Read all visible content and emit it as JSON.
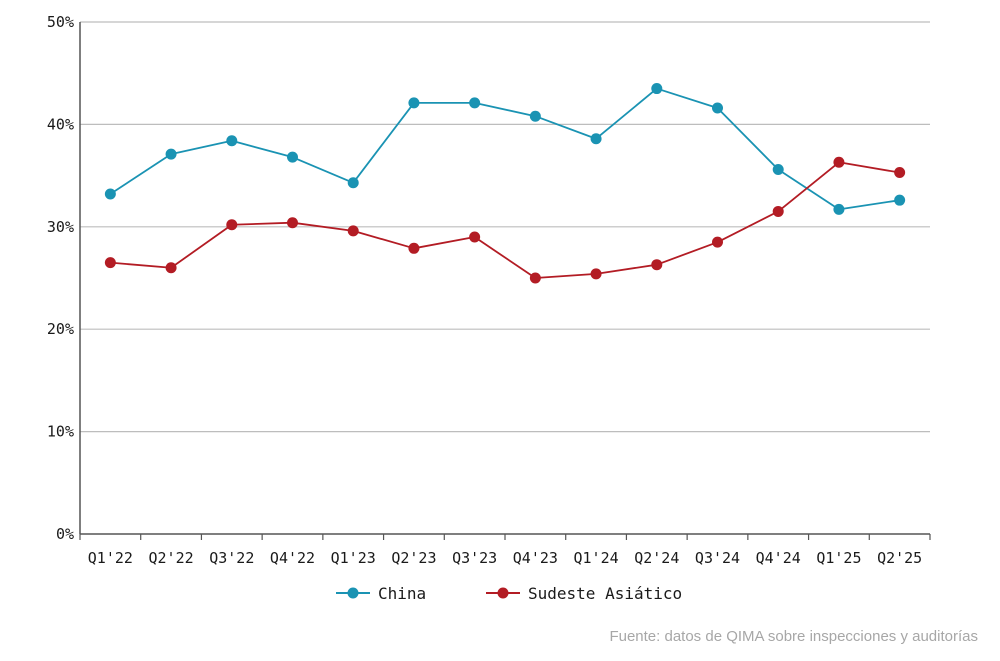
{
  "chart_data": {
    "type": "line",
    "title": "",
    "xlabel": "",
    "ylabel": "",
    "categories": [
      "Q1'22",
      "Q2'22",
      "Q3'22",
      "Q4'22",
      "Q1'23",
      "Q2'23",
      "Q3'23",
      "Q4'23",
      "Q1'24",
      "Q2'24",
      "Q3'24",
      "Q4'24",
      "Q1'25",
      "Q2'25"
    ],
    "y_ticks": [
      "0%",
      "10%",
      "20%",
      "30%",
      "40%",
      "50%"
    ],
    "ylim": [
      0,
      50
    ],
    "y_unit": "%",
    "grid": "horizontal",
    "legend_position": "bottom-center",
    "series": [
      {
        "name": "China",
        "color": "#1a93b3",
        "values": [
          33.2,
          37.1,
          38.4,
          36.8,
          34.3,
          42.1,
          42.1,
          40.8,
          38.6,
          43.5,
          41.6,
          35.6,
          31.7,
          32.6
        ]
      },
      {
        "name": "Sudeste Asiático",
        "color": "#b31c24",
        "values": [
          26.5,
          26.0,
          30.2,
          30.4,
          29.6,
          27.9,
          29.0,
          25.0,
          25.4,
          26.3,
          28.5,
          31.5,
          36.3,
          35.3
        ]
      }
    ]
  },
  "source": "Fuente: datos de QIMA sobre inspecciones y auditorías"
}
